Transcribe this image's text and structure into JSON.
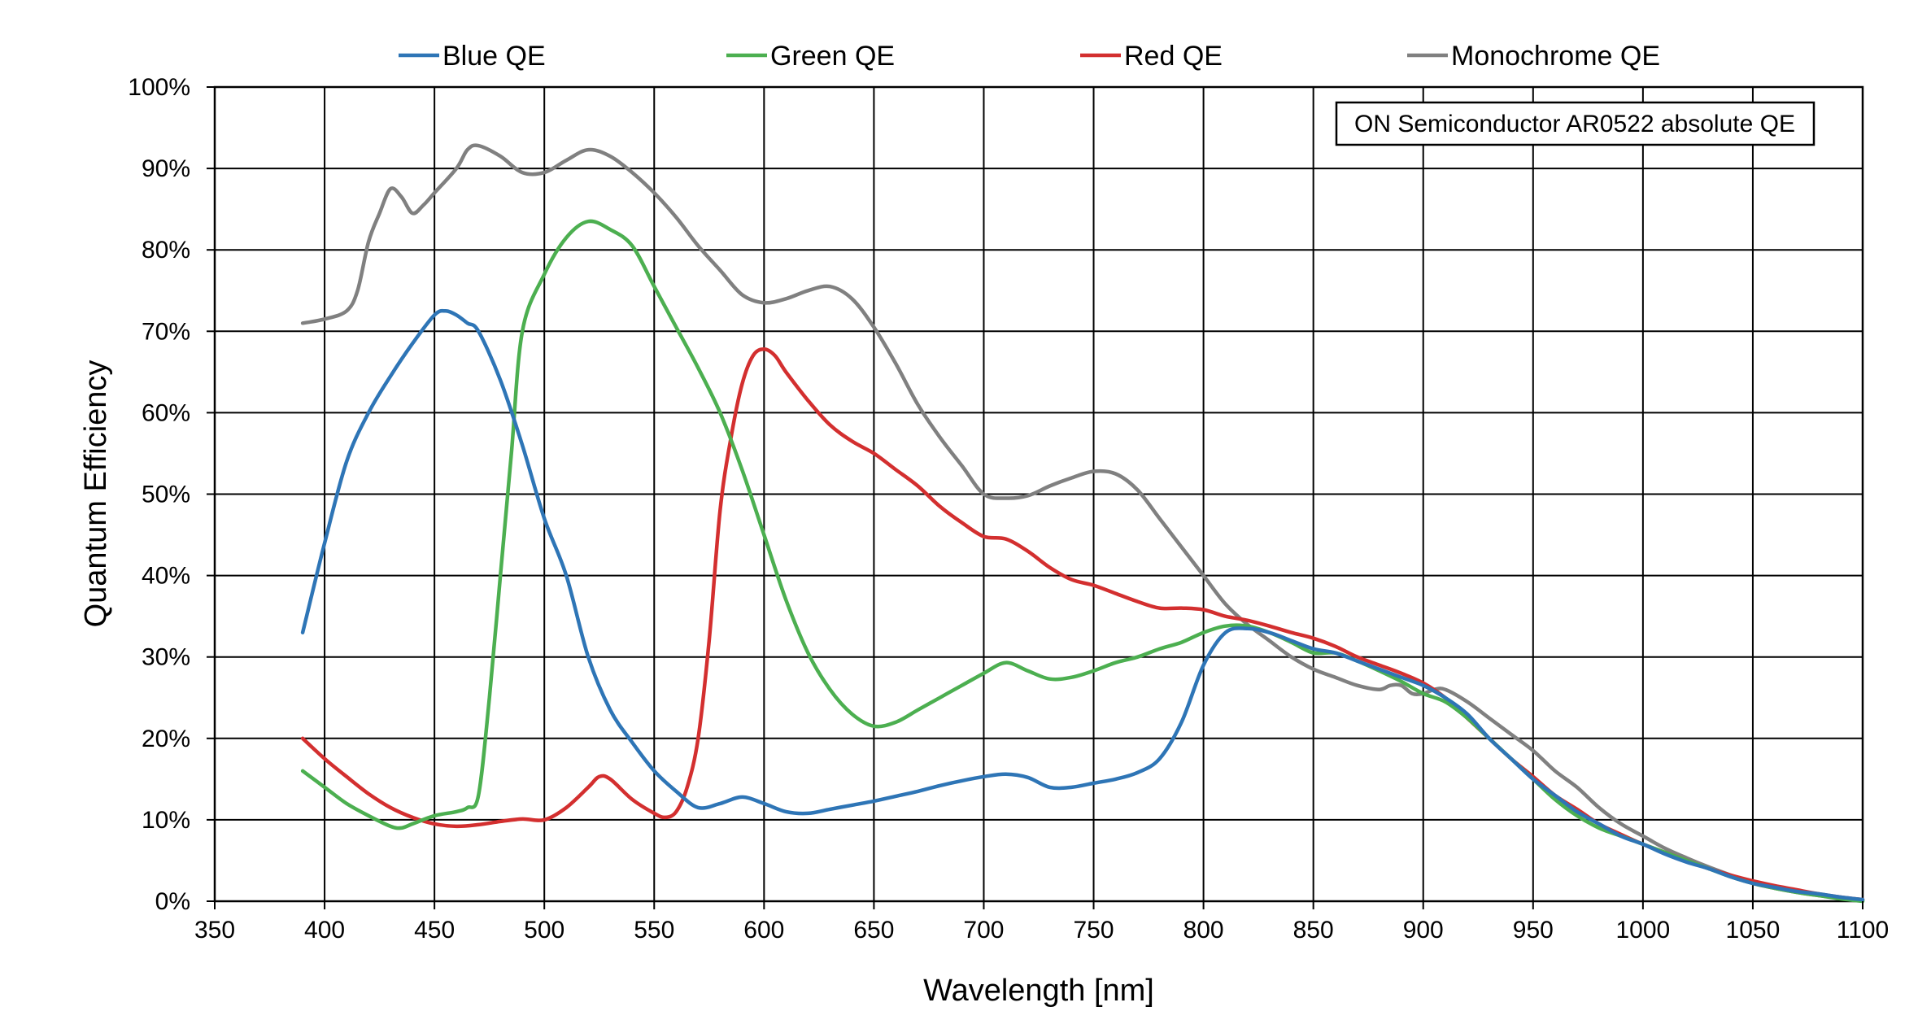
{
  "chart_data": {
    "type": "line",
    "title": "",
    "xlabel": "Wavelength [nm]",
    "ylabel": "Quantum Efficiency",
    "xlim": [
      350,
      1100
    ],
    "ylim": [
      0,
      100
    ],
    "x_ticks": [
      350,
      400,
      450,
      500,
      550,
      600,
      650,
      700,
      750,
      800,
      850,
      900,
      950,
      1000,
      1050,
      1100
    ],
    "y_ticks": [
      0,
      10,
      20,
      30,
      40,
      50,
      60,
      70,
      80,
      90,
      100
    ],
    "x_tick_labels": [
      "350",
      "400",
      "450",
      "500",
      "550",
      "600",
      "650",
      "700",
      "750",
      "800",
      "850",
      "900",
      "950",
      "1000",
      "1050",
      "1100"
    ],
    "y_tick_labels": [
      "0%",
      "10%",
      "20%",
      "30%",
      "40%",
      "50%",
      "60%",
      "70%",
      "80%",
      "90%",
      "100%"
    ],
    "grid": true,
    "legend_position": "top",
    "annotation": "ON Semiconductor AR0522 absolute QE",
    "series": [
      {
        "name": "Blue QE",
        "color": "#2E75B6",
        "x": [
          390,
          400,
          410,
          420,
          430,
          440,
          450,
          455,
          460,
          465,
          470,
          480,
          490,
          500,
          510,
          520,
          530,
          540,
          550,
          560,
          570,
          580,
          590,
          600,
          610,
          620,
          630,
          640,
          650,
          660,
          670,
          680,
          690,
          700,
          710,
          720,
          730,
          740,
          750,
          760,
          770,
          780,
          790,
          800,
          810,
          820,
          830,
          840,
          850,
          860,
          870,
          880,
          890,
          900,
          910,
          920,
          930,
          940,
          950,
          960,
          970,
          980,
          990,
          1000,
          1010,
          1020,
          1030,
          1040,
          1050,
          1060,
          1070,
          1080,
          1090,
          1100
        ],
        "values": [
          33,
          44,
          54,
          60,
          64.5,
          68.5,
          72,
          72.5,
          72,
          71,
          70,
          64,
          56,
          47,
          40,
          30,
          23.5,
          19.5,
          16,
          13.5,
          11.5,
          12,
          12.8,
          12,
          11,
          10.8,
          11.3,
          11.8,
          12.3,
          12.9,
          13.5,
          14.2,
          14.8,
          15.3,
          15.6,
          15.2,
          14,
          14,
          14.5,
          15,
          15.8,
          17.5,
          22,
          29,
          33,
          33.5,
          33,
          32,
          31,
          30.5,
          29.5,
          28.5,
          27.5,
          26.5,
          25,
          23,
          20,
          17.5,
          15,
          13,
          11,
          9.5,
          8,
          7,
          5.8,
          4.8,
          4,
          3,
          2.2,
          1.7,
          1.2,
          0.9,
          0.5,
          0.2
        ]
      },
      {
        "name": "Green QE",
        "color": "#4CAF50",
        "x": [
          390,
          400,
          410,
          420,
          430,
          435,
          440,
          450,
          460,
          465,
          470,
          475,
          480,
          485,
          490,
          500,
          510,
          520,
          530,
          540,
          550,
          560,
          570,
          580,
          590,
          600,
          610,
          620,
          630,
          640,
          650,
          660,
          670,
          680,
          690,
          700,
          710,
          720,
          730,
          740,
          750,
          760,
          770,
          780,
          790,
          800,
          810,
          820,
          830,
          840,
          850,
          860,
          870,
          880,
          890,
          900,
          910,
          920,
          930,
          940,
          950,
          960,
          970,
          980,
          990,
          1000,
          1010,
          1020,
          1030,
          1040,
          1050,
          1060,
          1070,
          1080,
          1090,
          1100
        ],
        "values": [
          16,
          14,
          12,
          10.5,
          9.2,
          9,
          9.5,
          10.5,
          11,
          11.5,
          13,
          25,
          40,
          55,
          70,
          77,
          81.5,
          83.5,
          82.5,
          80.5,
          75.5,
          70.5,
          65.5,
          60,
          53,
          45,
          37,
          30.5,
          26,
          23,
          21.5,
          22,
          23.5,
          25,
          26.5,
          28,
          29.3,
          28.3,
          27.3,
          27.5,
          28.3,
          29.3,
          30,
          31,
          31.8,
          33,
          33.8,
          33.8,
          33,
          31.8,
          30.5,
          30.5,
          29.5,
          28.3,
          27,
          25.5,
          24.5,
          22.5,
          20,
          17.5,
          15,
          12.5,
          10.5,
          9,
          8,
          7,
          6,
          5,
          4,
          3,
          2.2,
          1.6,
          1.1,
          0.7,
          0.3,
          0
        ]
      },
      {
        "name": "Red QE",
        "color": "#D32F2F",
        "x": [
          390,
          400,
          410,
          420,
          430,
          440,
          450,
          460,
          470,
          480,
          490,
          500,
          510,
          520,
          525,
          530,
          540,
          550,
          555,
          560,
          565,
          570,
          575,
          580,
          585,
          590,
          595,
          600,
          605,
          610,
          620,
          630,
          640,
          650,
          660,
          670,
          680,
          690,
          700,
          710,
          720,
          730,
          740,
          750,
          760,
          770,
          780,
          790,
          800,
          810,
          820,
          830,
          840,
          850,
          860,
          870,
          880,
          890,
          900,
          910,
          920,
          930,
          940,
          950,
          960,
          970,
          980,
          990,
          1000,
          1010,
          1020,
          1030,
          1040,
          1050,
          1060,
          1070,
          1080,
          1090,
          1100
        ],
        "values": [
          20,
          17.5,
          15.3,
          13.2,
          11.5,
          10.3,
          9.5,
          9.2,
          9.4,
          9.8,
          10.1,
          10,
          11.5,
          14,
          15.3,
          15,
          12.5,
          10.8,
          10.3,
          11,
          14,
          20,
          32,
          48,
          57,
          63.5,
          67,
          67.8,
          67,
          65,
          61.5,
          58.5,
          56.5,
          55,
          53,
          51,
          48.5,
          46.5,
          44.8,
          44.5,
          43,
          41,
          39.5,
          38.8,
          37.8,
          36.8,
          36,
          36,
          35.8,
          35,
          34.5,
          33.8,
          33,
          32.3,
          31.3,
          30,
          29,
          28,
          26.8,
          25,
          22.5,
          20,
          17.5,
          15.3,
          13,
          11.3,
          9.5,
          8.2,
          7,
          6,
          5,
          4,
          3.2,
          2.5,
          1.9,
          1.4,
          0.9,
          0.5,
          0.2
        ]
      },
      {
        "name": "Monochrome QE",
        "color": "#808080",
        "x": [
          390,
          400,
          410,
          415,
          420,
          425,
          430,
          435,
          440,
          445,
          450,
          460,
          465,
          470,
          480,
          490,
          500,
          510,
          520,
          530,
          540,
          550,
          560,
          570,
          580,
          590,
          600,
          610,
          620,
          630,
          640,
          650,
          660,
          670,
          680,
          690,
          700,
          710,
          720,
          730,
          740,
          750,
          760,
          770,
          780,
          790,
          800,
          810,
          820,
          830,
          840,
          850,
          860,
          870,
          880,
          885,
          890,
          895,
          900,
          905,
          910,
          920,
          930,
          940,
          950,
          960,
          970,
          980,
          990,
          1000,
          1010,
          1020,
          1030,
          1040,
          1050,
          1060,
          1070,
          1080,
          1090,
          1100
        ],
        "values": [
          71,
          71.5,
          72.5,
          75,
          81,
          84.5,
          87.5,
          86.5,
          84.5,
          85.5,
          87,
          90,
          92.3,
          92.8,
          91.5,
          89.5,
          89.5,
          91,
          92.3,
          91.5,
          89.5,
          87,
          84,
          80.5,
          77.5,
          74.5,
          73.5,
          74,
          75,
          75.5,
          74,
          70.5,
          66,
          61,
          57,
          53.5,
          50,
          49.5,
          49.8,
          51,
          52,
          52.8,
          52.5,
          50.5,
          47,
          43.5,
          40,
          36.5,
          34,
          32,
          30,
          28.5,
          27.5,
          26.5,
          26,
          26.5,
          26.5,
          25.5,
          25.5,
          26,
          26,
          24.5,
          22.5,
          20.5,
          18.5,
          16,
          14,
          11.5,
          9.5,
          8,
          6.5,
          5.3,
          4.2,
          3.2,
          2.2,
          1.6,
          1.1,
          0.7,
          0.4,
          0.1
        ]
      }
    ]
  }
}
